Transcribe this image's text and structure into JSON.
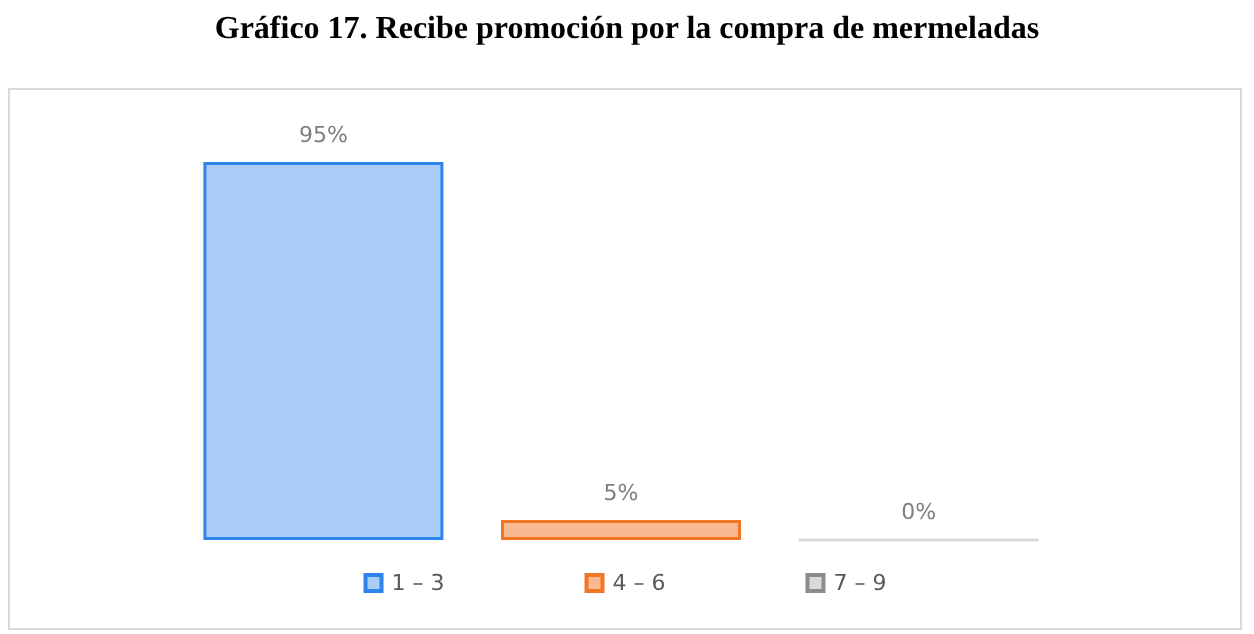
{
  "chart_data": {
    "type": "bar",
    "title": "Gráfico 17. Recibe promoción por la compra de mermeladas",
    "categories": [
      null
    ],
    "series": [
      {
        "name": "1 – 3",
        "color": "#a9cdf7",
        "values": [
          95
        ],
        "value_labels": [
          "95%"
        ]
      },
      {
        "name": "4 – 6",
        "color": "#f8b990",
        "values": [
          5
        ],
        "value_labels": [
          "5%"
        ]
      },
      {
        "name": "7 – 9",
        "color": "#d9d9d9",
        "values": [
          0
        ],
        "value_labels": [
          "0%"
        ]
      }
    ],
    "legend": "bottom"
  }
}
